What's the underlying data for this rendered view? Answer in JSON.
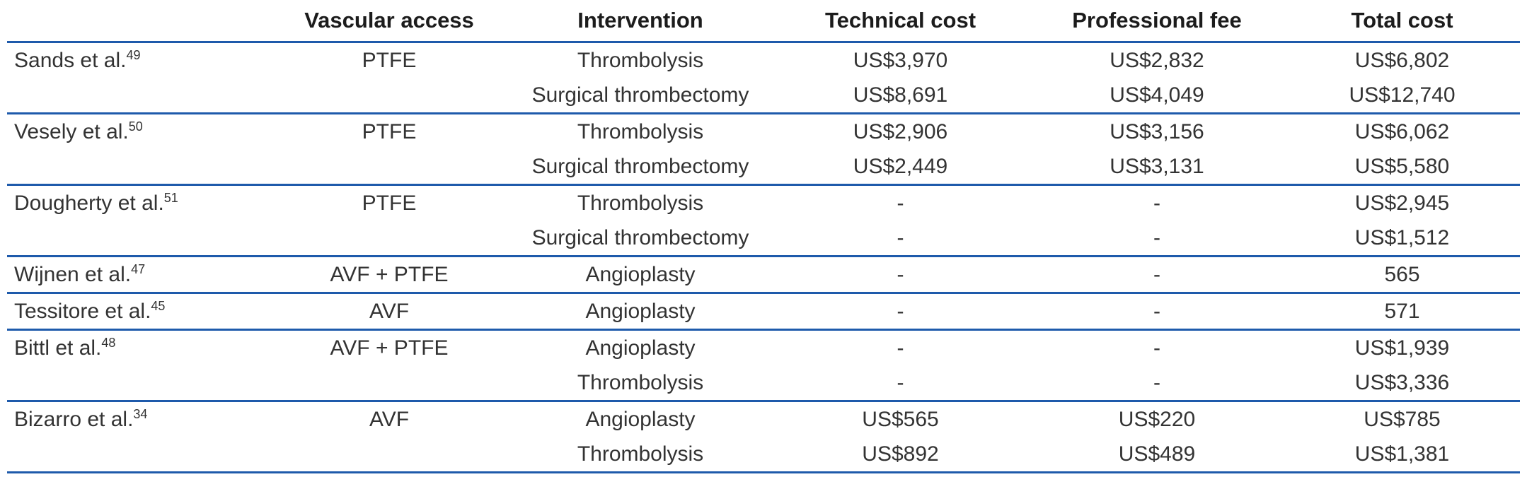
{
  "colors": {
    "rule_blue": "#1e5aab",
    "header_text": "#1c1c1c",
    "body_text": "#333333",
    "background": "#ffffff"
  },
  "table": {
    "columns": [
      {
        "label": ""
      },
      {
        "label": "Vascular access"
      },
      {
        "label": "Intervention"
      },
      {
        "label": "Technical cost"
      },
      {
        "label": "Professional fee"
      },
      {
        "label": "Total cost"
      }
    ],
    "rows": [
      {
        "study": "Sands et al.",
        "ref": "49",
        "access": "PTFE",
        "intervention": "Thrombolysis",
        "technical": "US$3,970",
        "professional": "US$2,832",
        "total": "US$6,802",
        "rule_below": false
      },
      {
        "study": "",
        "ref": "",
        "access": "",
        "intervention": "Surgical thrombectomy",
        "technical": "US$8,691",
        "professional": "US$4,049",
        "total": "US$12,740",
        "rule_below": true
      },
      {
        "study": "Vesely et al.",
        "ref": "50",
        "access": "PTFE",
        "intervention": "Thrombolysis",
        "technical": "US$2,906",
        "professional": "US$3,156",
        "total": "US$6,062",
        "rule_below": false
      },
      {
        "study": "",
        "ref": "",
        "access": "",
        "intervention": "Surgical thrombectomy",
        "technical": "US$2,449",
        "professional": "US$3,131",
        "total": "US$5,580",
        "rule_below": true
      },
      {
        "study": "Dougherty et al.",
        "ref": "51",
        "access": "PTFE",
        "intervention": "Thrombolysis",
        "technical": "-",
        "professional": "-",
        "total": "US$2,945",
        "rule_below": false
      },
      {
        "study": "",
        "ref": "",
        "access": "",
        "intervention": "Surgical thrombectomy",
        "technical": "-",
        "professional": "-",
        "total": "US$1,512",
        "rule_below": true
      },
      {
        "study": "Wijnen et al.",
        "ref": "47",
        "access": "AVF + PTFE",
        "intervention": "Angioplasty",
        "technical": "-",
        "professional": "-",
        "total": "565",
        "rule_below": true
      },
      {
        "study": "Tessitore et al.",
        "ref": "45",
        "access": "AVF",
        "intervention": "Angioplasty",
        "technical": "-",
        "professional": "-",
        "total": "571",
        "rule_below": true
      },
      {
        "study": "Bittl et al.",
        "ref": "48",
        "access": "AVF + PTFE",
        "intervention": "Angioplasty",
        "technical": "-",
        "professional": "-",
        "total": "US$1,939",
        "rule_below": false
      },
      {
        "study": "",
        "ref": "",
        "access": "",
        "intervention": "Thrombolysis",
        "technical": "-",
        "professional": "-",
        "total": "US$3,336",
        "rule_below": true
      },
      {
        "study": "Bizarro et al.",
        "ref": "34",
        "access": "AVF",
        "intervention": "Angioplasty",
        "technical": "US$565",
        "professional": "US$220",
        "total": "US$785",
        "rule_below": false
      },
      {
        "study": "",
        "ref": "",
        "access": "",
        "intervention": "Thrombolysis",
        "technical": "US$892",
        "professional": "US$489",
        "total": "US$1,381",
        "rule_below": true
      }
    ]
  }
}
